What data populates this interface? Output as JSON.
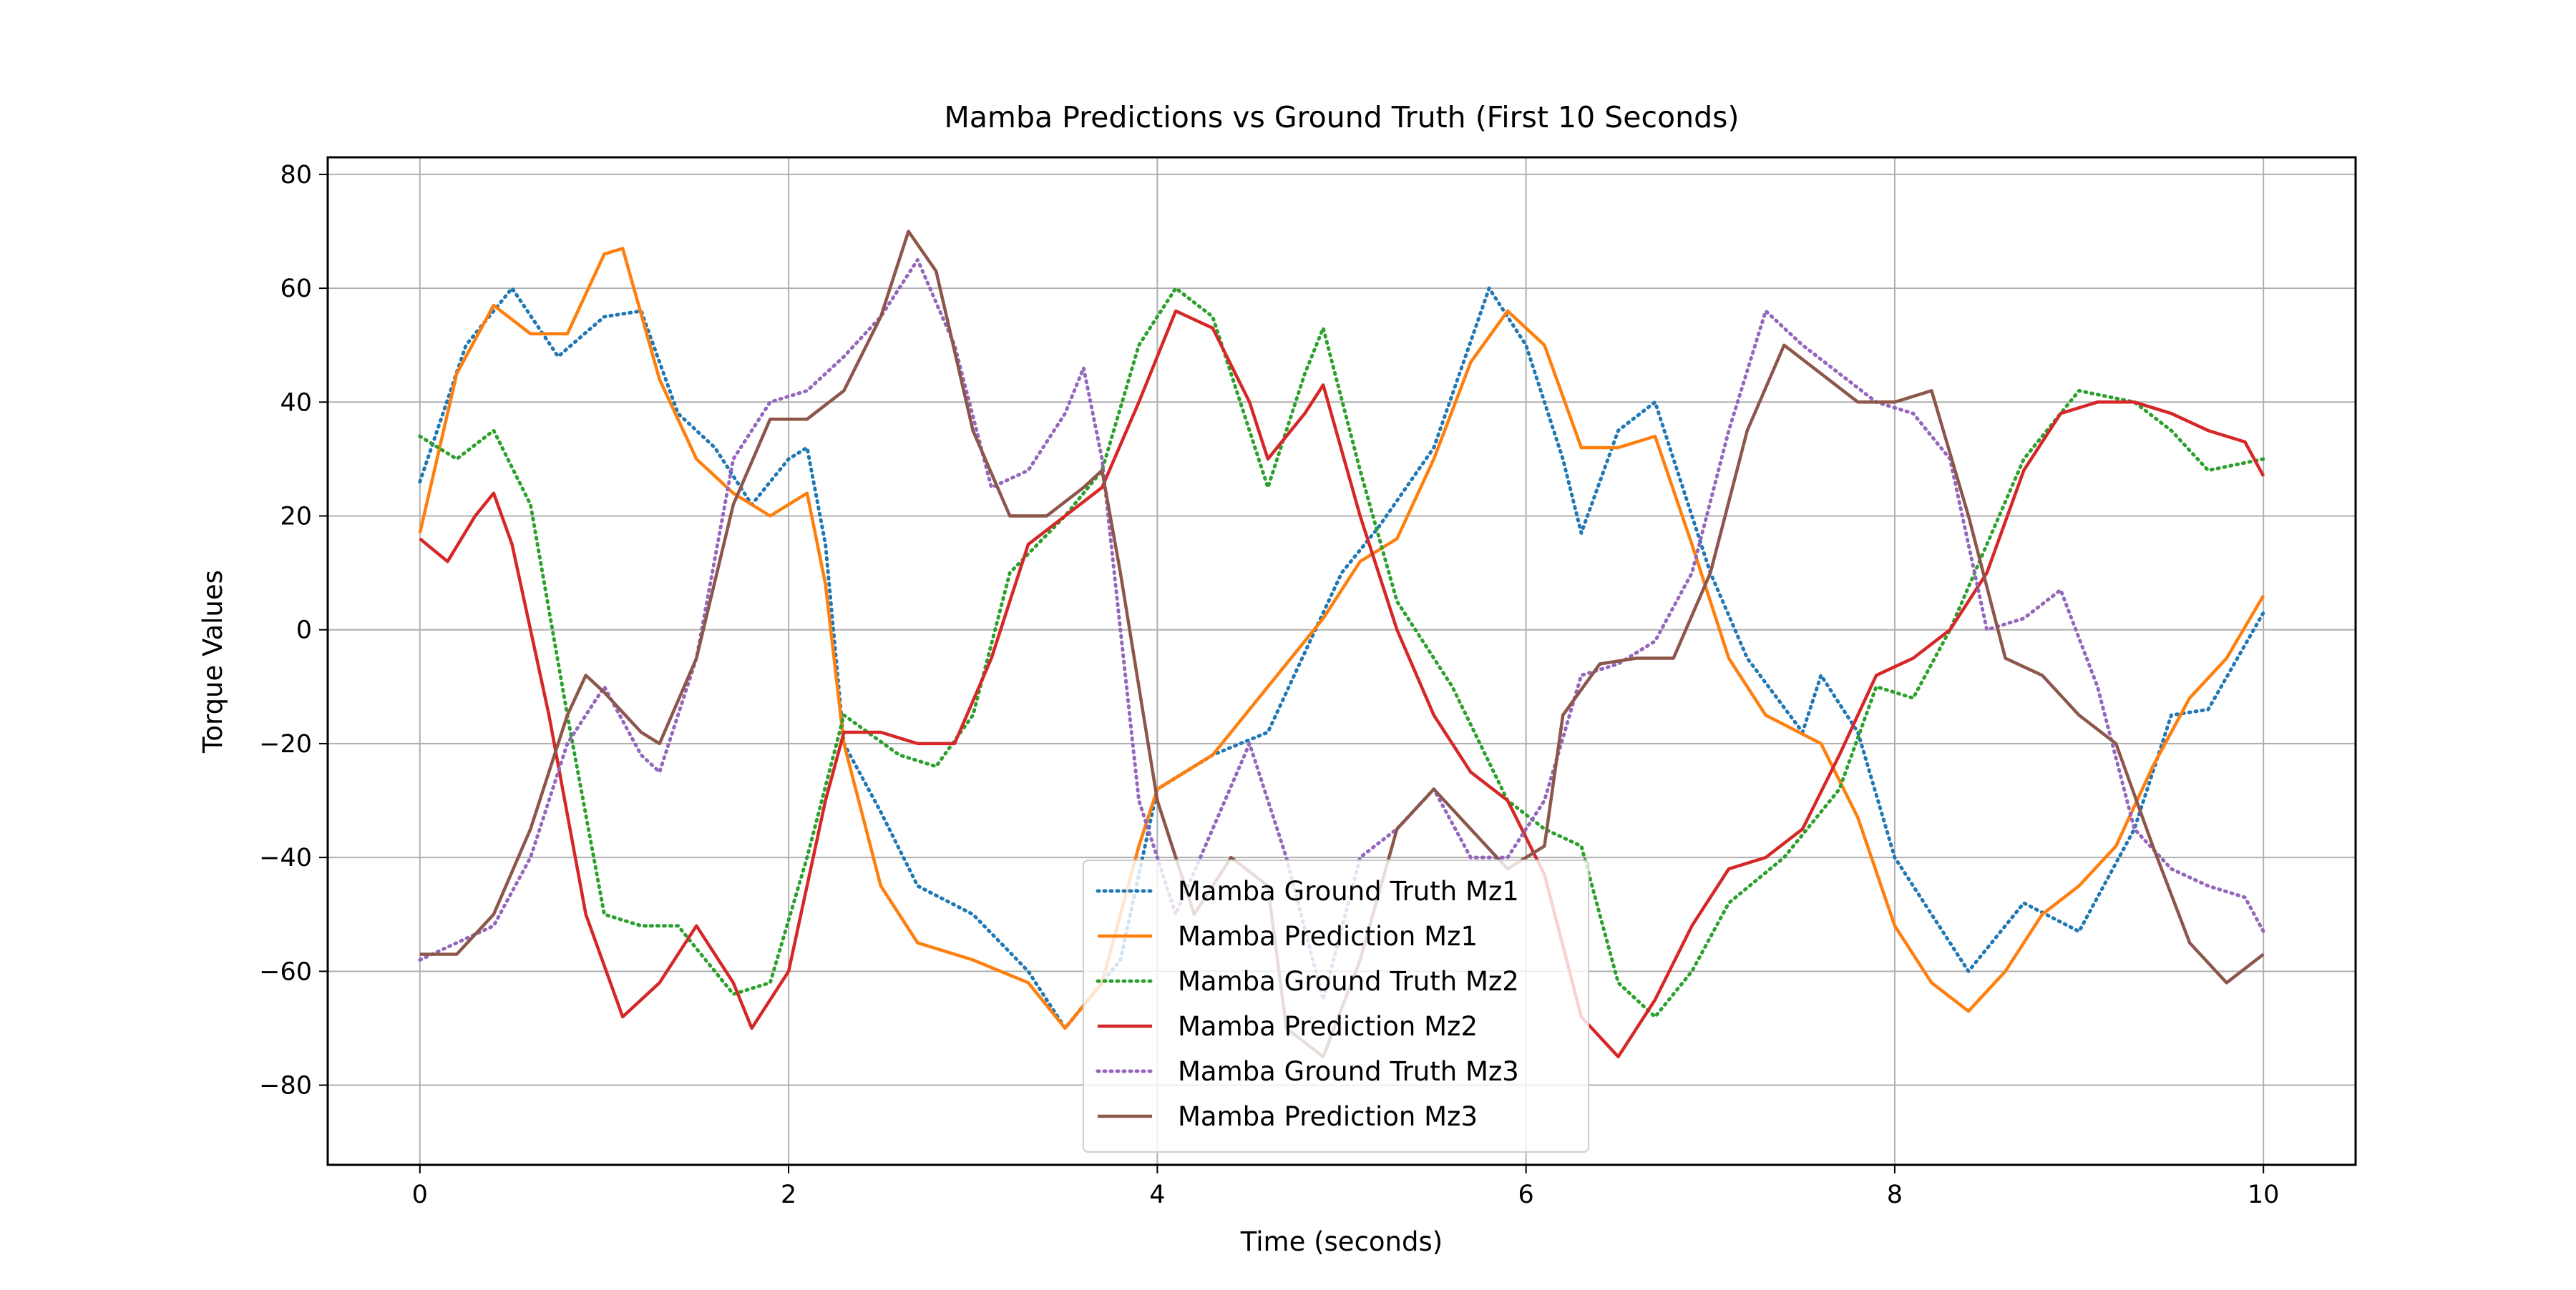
{
  "chart_data": {
    "type": "line",
    "title": "Mamba Predictions vs Ground Truth (First 10 Seconds)",
    "xlabel": "Time (seconds)",
    "ylabel": "Torque Values",
    "xlim": [
      -0.5,
      10.5
    ],
    "ylim": [
      -94,
      83
    ],
    "xticks": [
      0,
      2,
      4,
      6,
      8,
      10
    ],
    "xtick_labels": [
      "0",
      "2",
      "4",
      "6",
      "8",
      "10"
    ],
    "yticks": [
      80,
      60,
      40,
      20,
      0,
      -20,
      -40,
      -60,
      -80
    ],
    "ytick_labels": [
      "80",
      "60",
      "40",
      "20",
      "0",
      "−20",
      "−40",
      "−60",
      "−80"
    ],
    "grid": true,
    "legend_position": "lower center",
    "series": [
      {
        "name": "Mamba Ground Truth Mz1",
        "color": "#1f77b4",
        "style": "dotted",
        "points": [
          [
            0,
            26
          ],
          [
            0.25,
            50
          ],
          [
            0.5,
            60
          ],
          [
            0.75,
            48
          ],
          [
            1.0,
            55
          ],
          [
            1.2,
            56
          ],
          [
            1.4,
            38
          ],
          [
            1.6,
            32
          ],
          [
            1.8,
            22
          ],
          [
            2.0,
            30
          ],
          [
            2.1,
            32
          ],
          [
            2.2,
            15
          ],
          [
            2.3,
            -20
          ],
          [
            2.5,
            -32
          ],
          [
            2.7,
            -45
          ],
          [
            3.0,
            -50
          ],
          [
            3.3,
            -60
          ],
          [
            3.5,
            -70
          ],
          [
            3.8,
            -58
          ],
          [
            4.0,
            -28
          ],
          [
            4.3,
            -22
          ],
          [
            4.6,
            -18
          ],
          [
            5.0,
            10
          ],
          [
            5.2,
            18
          ],
          [
            5.5,
            32
          ],
          [
            5.8,
            60
          ],
          [
            6.0,
            50
          ],
          [
            6.2,
            30
          ],
          [
            6.3,
            17
          ],
          [
            6.5,
            35
          ],
          [
            6.7,
            40
          ],
          [
            7.0,
            10
          ],
          [
            7.2,
            -5
          ],
          [
            7.5,
            -18
          ],
          [
            7.6,
            -8
          ],
          [
            7.8,
            -18
          ],
          [
            8.0,
            -40
          ],
          [
            8.2,
            -50
          ],
          [
            8.4,
            -60
          ],
          [
            8.7,
            -48
          ],
          [
            9.0,
            -53
          ],
          [
            9.3,
            -35
          ],
          [
            9.5,
            -15
          ],
          [
            9.7,
            -14
          ],
          [
            10.0,
            3
          ]
        ]
      },
      {
        "name": "Mamba Prediction Mz1",
        "color": "#ff7f0e",
        "style": "solid",
        "points": [
          [
            0,
            17
          ],
          [
            0.2,
            45
          ],
          [
            0.4,
            57
          ],
          [
            0.6,
            52
          ],
          [
            0.8,
            52
          ],
          [
            1.0,
            66
          ],
          [
            1.1,
            67
          ],
          [
            1.3,
            44
          ],
          [
            1.5,
            30
          ],
          [
            1.7,
            24
          ],
          [
            1.9,
            20
          ],
          [
            2.1,
            24
          ],
          [
            2.2,
            8
          ],
          [
            2.3,
            -20
          ],
          [
            2.5,
            -45
          ],
          [
            2.7,
            -55
          ],
          [
            3.0,
            -58
          ],
          [
            3.3,
            -62
          ],
          [
            3.5,
            -70
          ],
          [
            3.7,
            -62
          ],
          [
            3.9,
            -38
          ],
          [
            4.0,
            -28
          ],
          [
            4.3,
            -22
          ],
          [
            4.6,
            -10
          ],
          [
            4.9,
            2
          ],
          [
            5.1,
            12
          ],
          [
            5.3,
            16
          ],
          [
            5.5,
            30
          ],
          [
            5.7,
            47
          ],
          [
            5.9,
            56
          ],
          [
            6.1,
            50
          ],
          [
            6.3,
            32
          ],
          [
            6.5,
            32
          ],
          [
            6.7,
            34
          ],
          [
            6.9,
            15
          ],
          [
            7.1,
            -5
          ],
          [
            7.3,
            -15
          ],
          [
            7.6,
            -20
          ],
          [
            7.8,
            -33
          ],
          [
            8.0,
            -52
          ],
          [
            8.2,
            -62
          ],
          [
            8.4,
            -67
          ],
          [
            8.6,
            -60
          ],
          [
            8.8,
            -50
          ],
          [
            9.0,
            -45
          ],
          [
            9.2,
            -38
          ],
          [
            9.4,
            -24
          ],
          [
            9.6,
            -12
          ],
          [
            9.8,
            -5
          ],
          [
            10.0,
            6
          ]
        ]
      },
      {
        "name": "Mamba Ground Truth Mz2",
        "color": "#2ca02c",
        "style": "dotted",
        "points": [
          [
            0,
            34
          ],
          [
            0.2,
            30
          ],
          [
            0.4,
            35
          ],
          [
            0.6,
            22
          ],
          [
            0.8,
            -15
          ],
          [
            1.0,
            -50
          ],
          [
            1.2,
            -52
          ],
          [
            1.4,
            -52
          ],
          [
            1.7,
            -64
          ],
          [
            1.9,
            -62
          ],
          [
            2.1,
            -40
          ],
          [
            2.3,
            -15
          ],
          [
            2.6,
            -22
          ],
          [
            2.8,
            -24
          ],
          [
            3.0,
            -15
          ],
          [
            3.2,
            10
          ],
          [
            3.5,
            20
          ],
          [
            3.7,
            28
          ],
          [
            3.9,
            50
          ],
          [
            4.1,
            60
          ],
          [
            4.3,
            55
          ],
          [
            4.6,
            25
          ],
          [
            4.8,
            45
          ],
          [
            4.9,
            53
          ],
          [
            5.1,
            28
          ],
          [
            5.3,
            5
          ],
          [
            5.6,
            -10
          ],
          [
            5.9,
            -30
          ],
          [
            6.1,
            -35
          ],
          [
            6.3,
            -38
          ],
          [
            6.5,
            -62
          ],
          [
            6.7,
            -68
          ],
          [
            6.9,
            -60
          ],
          [
            7.1,
            -48
          ],
          [
            7.4,
            -40
          ],
          [
            7.7,
            -28
          ],
          [
            7.9,
            -10
          ],
          [
            8.1,
            -12
          ],
          [
            8.3,
            0
          ],
          [
            8.5,
            15
          ],
          [
            8.7,
            30
          ],
          [
            9.0,
            42
          ],
          [
            9.3,
            40
          ],
          [
            9.5,
            35
          ],
          [
            9.7,
            28
          ],
          [
            10.0,
            30
          ]
        ]
      },
      {
        "name": "Mamba Prediction Mz2",
        "color": "#d62728",
        "style": "solid",
        "points": [
          [
            0,
            16
          ],
          [
            0.15,
            12
          ],
          [
            0.3,
            20
          ],
          [
            0.4,
            24
          ],
          [
            0.5,
            15
          ],
          [
            0.7,
            -15
          ],
          [
            0.9,
            -50
          ],
          [
            1.1,
            -68
          ],
          [
            1.3,
            -62
          ],
          [
            1.5,
            -52
          ],
          [
            1.7,
            -62
          ],
          [
            1.8,
            -70
          ],
          [
            2.0,
            -60
          ],
          [
            2.2,
            -30
          ],
          [
            2.3,
            -18
          ],
          [
            2.5,
            -18
          ],
          [
            2.7,
            -20
          ],
          [
            2.9,
            -20
          ],
          [
            3.1,
            -5
          ],
          [
            3.3,
            15
          ],
          [
            3.5,
            20
          ],
          [
            3.7,
            25
          ],
          [
            3.9,
            40
          ],
          [
            4.1,
            56
          ],
          [
            4.3,
            53
          ],
          [
            4.5,
            40
          ],
          [
            4.6,
            30
          ],
          [
            4.8,
            38
          ],
          [
            4.9,
            43
          ],
          [
            5.1,
            20
          ],
          [
            5.3,
            0
          ],
          [
            5.5,
            -15
          ],
          [
            5.7,
            -25
          ],
          [
            5.9,
            -30
          ],
          [
            6.1,
            -43
          ],
          [
            6.3,
            -68
          ],
          [
            6.5,
            -75
          ],
          [
            6.7,
            -65
          ],
          [
            6.9,
            -52
          ],
          [
            7.1,
            -42
          ],
          [
            7.3,
            -40
          ],
          [
            7.5,
            -35
          ],
          [
            7.7,
            -22
          ],
          [
            7.9,
            -8
          ],
          [
            8.1,
            -5
          ],
          [
            8.3,
            0
          ],
          [
            8.5,
            10
          ],
          [
            8.7,
            28
          ],
          [
            8.9,
            38
          ],
          [
            9.1,
            40
          ],
          [
            9.3,
            40
          ],
          [
            9.5,
            38
          ],
          [
            9.7,
            35
          ],
          [
            9.9,
            33
          ],
          [
            10.0,
            27
          ]
        ]
      },
      {
        "name": "Mamba Ground Truth Mz3",
        "color": "#9467bd",
        "style": "dotted",
        "points": [
          [
            0,
            -58
          ],
          [
            0.2,
            -55
          ],
          [
            0.4,
            -52
          ],
          [
            0.6,
            -40
          ],
          [
            0.8,
            -20
          ],
          [
            1.0,
            -10
          ],
          [
            1.2,
            -22
          ],
          [
            1.3,
            -25
          ],
          [
            1.5,
            -5
          ],
          [
            1.7,
            30
          ],
          [
            1.9,
            40
          ],
          [
            2.1,
            42
          ],
          [
            2.3,
            48
          ],
          [
            2.5,
            55
          ],
          [
            2.7,
            65
          ],
          [
            2.9,
            50
          ],
          [
            3.1,
            25
          ],
          [
            3.3,
            28
          ],
          [
            3.5,
            38
          ],
          [
            3.6,
            46
          ],
          [
            3.7,
            30
          ],
          [
            3.8,
            0
          ],
          [
            3.9,
            -30
          ],
          [
            4.1,
            -50
          ],
          [
            4.3,
            -35
          ],
          [
            4.5,
            -20
          ],
          [
            4.7,
            -40
          ],
          [
            4.9,
            -65
          ],
          [
            5.1,
            -40
          ],
          [
            5.3,
            -35
          ],
          [
            5.5,
            -28
          ],
          [
            5.7,
            -40
          ],
          [
            5.9,
            -40
          ],
          [
            6.1,
            -30
          ],
          [
            6.3,
            -8
          ],
          [
            6.5,
            -6
          ],
          [
            6.7,
            -2
          ],
          [
            6.9,
            10
          ],
          [
            7.1,
            35
          ],
          [
            7.3,
            56
          ],
          [
            7.5,
            50
          ],
          [
            7.7,
            45
          ],
          [
            7.9,
            40
          ],
          [
            8.1,
            38
          ],
          [
            8.3,
            30
          ],
          [
            8.5,
            0
          ],
          [
            8.7,
            2
          ],
          [
            8.9,
            7
          ],
          [
            9.1,
            -10
          ],
          [
            9.3,
            -35
          ],
          [
            9.5,
            -42
          ],
          [
            9.7,
            -45
          ],
          [
            9.9,
            -47
          ],
          [
            10.0,
            -53
          ]
        ]
      },
      {
        "name": "Mamba Prediction Mz3",
        "color": "#8c564b",
        "style": "solid",
        "points": [
          [
            0,
            -57
          ],
          [
            0.2,
            -57
          ],
          [
            0.4,
            -50
          ],
          [
            0.6,
            -35
          ],
          [
            0.8,
            -15
          ],
          [
            0.9,
            -8
          ],
          [
            1.0,
            -11
          ],
          [
            1.2,
            -18
          ],
          [
            1.3,
            -20
          ],
          [
            1.5,
            -5
          ],
          [
            1.7,
            22
          ],
          [
            1.9,
            37
          ],
          [
            2.1,
            37
          ],
          [
            2.3,
            42
          ],
          [
            2.5,
            55
          ],
          [
            2.65,
            70
          ],
          [
            2.8,
            63
          ],
          [
            3.0,
            35
          ],
          [
            3.2,
            20
          ],
          [
            3.4,
            20
          ],
          [
            3.6,
            25
          ],
          [
            3.7,
            28
          ],
          [
            3.8,
            10
          ],
          [
            4.0,
            -30
          ],
          [
            4.2,
            -50
          ],
          [
            4.4,
            -40
          ],
          [
            4.6,
            -45
          ],
          [
            4.7,
            -70
          ],
          [
            4.9,
            -75
          ],
          [
            5.1,
            -58
          ],
          [
            5.3,
            -35
          ],
          [
            5.5,
            -28
          ],
          [
            5.7,
            -35
          ],
          [
            5.9,
            -42
          ],
          [
            6.1,
            -38
          ],
          [
            6.2,
            -15
          ],
          [
            6.4,
            -6
          ],
          [
            6.6,
            -5
          ],
          [
            6.8,
            -5
          ],
          [
            7.0,
            10
          ],
          [
            7.2,
            35
          ],
          [
            7.4,
            50
          ],
          [
            7.6,
            45
          ],
          [
            7.8,
            40
          ],
          [
            8.0,
            40
          ],
          [
            8.2,
            42
          ],
          [
            8.4,
            20
          ],
          [
            8.6,
            -5
          ],
          [
            8.8,
            -8
          ],
          [
            9.0,
            -15
          ],
          [
            9.2,
            -20
          ],
          [
            9.4,
            -38
          ],
          [
            9.6,
            -55
          ],
          [
            9.8,
            -62
          ],
          [
            10.0,
            -57
          ]
        ]
      }
    ]
  }
}
